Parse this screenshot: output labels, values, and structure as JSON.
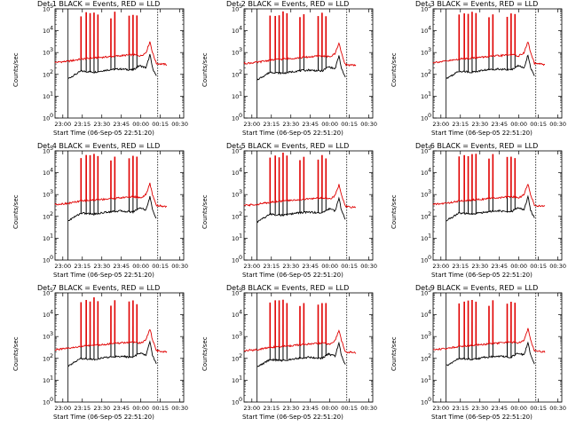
{
  "shared": {
    "ylabel": "Counts/sec",
    "xlabel": "Start Time (06-Sep-05 22:51:20)",
    "x_tick_labels": [
      "23:00",
      "23:15",
      "23:30",
      "23:45",
      "00:00",
      "00:15",
      "00:30"
    ],
    "y_tick_exponents": [
      "0",
      "1",
      "2",
      "3",
      "4",
      "5"
    ],
    "y_tick_base": "10",
    "black_color": "#000000",
    "red_color": "#e00000"
  },
  "panels": [
    {
      "title": "Det 1 BLACK = Events, RED = LLD"
    },
    {
      "title": "Det 2 BLACK = Events, RED = LLD"
    },
    {
      "title": "Det 3 BLACK = Events, RED = LLD"
    },
    {
      "title": "Det 4 BLACK = Events, RED = LLD"
    },
    {
      "title": "Det 5 BLACK = Events, RED = LLD"
    },
    {
      "title": "Det 6 BLACK = Events, RED = LLD"
    },
    {
      "title": "Det 7 BLACK = Events, RED = LLD"
    },
    {
      "title": "Det 8 BLACK = Events, RED = LLD"
    },
    {
      "title": "Det 9 BLACK = Events, RED = LLD"
    }
  ],
  "chart_data": {
    "type": "line",
    "layout": "3x3 small multiples",
    "x_unit": "minutes from 22:51:20",
    "x_range": [
      0,
      99
    ],
    "y_scale": "log",
    "y_range_log10": [
      0,
      5
    ],
    "series": [
      {
        "name": "Events",
        "color": "black",
        "baseline_log10": 2.1,
        "points_log10": [
          [
            10,
            1.8
          ],
          [
            20,
            2.15
          ],
          [
            30,
            2.1
          ],
          [
            40,
            2.2
          ],
          [
            50,
            2.25
          ],
          [
            60,
            2.2
          ],
          [
            65,
            2.4
          ],
          [
            70,
            2.3
          ],
          [
            73,
            2.9
          ],
          [
            75,
            2.3
          ],
          [
            78,
            1.9
          ]
        ],
        "spikes_log10": [
          [
            20,
            3.5
          ],
          [
            24,
            3.6
          ],
          [
            27,
            3.7
          ],
          [
            30,
            3.8
          ],
          [
            33,
            3.6
          ],
          [
            43,
            3.4
          ],
          [
            46,
            3.7
          ],
          [
            57,
            3.5
          ],
          [
            60,
            3.6
          ],
          [
            63,
            3.5
          ]
        ]
      },
      {
        "name": "LLD",
        "color": "red",
        "baseline_log10": 2.5,
        "points_log10": [
          [
            0,
            2.55
          ],
          [
            10,
            2.6
          ],
          [
            20,
            2.7
          ],
          [
            30,
            2.75
          ],
          [
            40,
            2.8
          ],
          [
            50,
            2.85
          ],
          [
            60,
            2.9
          ],
          [
            66,
            2.85
          ],
          [
            70,
            3.0
          ],
          [
            73,
            3.5
          ],
          [
            75,
            3.0
          ],
          [
            78,
            2.5
          ],
          [
            86,
            2.45
          ]
        ],
        "spikes_log10": [
          [
            20,
            4.7
          ],
          [
            24,
            4.8
          ],
          [
            27,
            4.8
          ],
          [
            30,
            4.9
          ],
          [
            33,
            4.8
          ],
          [
            43,
            4.6
          ],
          [
            46,
            4.8
          ],
          [
            57,
            4.7
          ],
          [
            60,
            4.8
          ],
          [
            63,
            4.7
          ]
        ]
      }
    ],
    "vertical_markers_minutes": [
      10,
      79
    ],
    "grid": false
  }
}
